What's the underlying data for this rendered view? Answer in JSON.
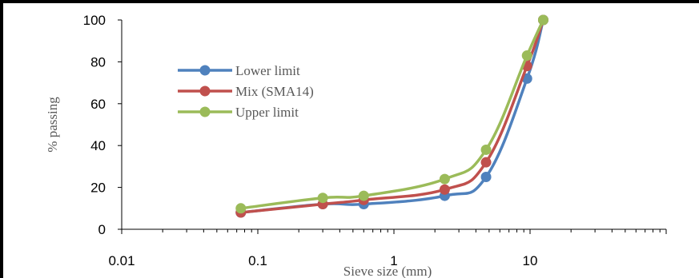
{
  "chart_data": {
    "type": "line",
    "title": "",
    "xlabel": "Sieve size (mm)",
    "ylabel": "% passing",
    "x_scale": "log",
    "xlim": [
      0.01,
      100
    ],
    "ylim": [
      0,
      100
    ],
    "x_ticks": [
      "0.01",
      "0.1",
      "1",
      "10"
    ],
    "y_ticks": [
      "0",
      "20",
      "40",
      "60",
      "80",
      "100"
    ],
    "grid": false,
    "legend_position": "top-left",
    "series": [
      {
        "name": "Lower limit",
        "color": "#4f81bd",
        "points": [
          {
            "x": 0.075,
            "y": 8
          },
          {
            "x": 0.3,
            "y": 12
          },
          {
            "x": 0.6,
            "y": 12
          },
          {
            "x": 2.36,
            "y": 16
          },
          {
            "x": 4.75,
            "y": 25
          },
          {
            "x": 9.5,
            "y": 72
          },
          {
            "x": 12.5,
            "y": 100
          }
        ]
      },
      {
        "name": "Mix (SMA14)",
        "color": "#c0504d",
        "points": [
          {
            "x": 0.075,
            "y": 8
          },
          {
            "x": 0.3,
            "y": 12
          },
          {
            "x": 0.6,
            "y": 14
          },
          {
            "x": 2.36,
            "y": 19
          },
          {
            "x": 4.75,
            "y": 32
          },
          {
            "x": 9.5,
            "y": 78
          },
          {
            "x": 12.5,
            "y": 100
          }
        ]
      },
      {
        "name": "Upper limit",
        "color": "#9bbb59",
        "points": [
          {
            "x": 0.075,
            "y": 10
          },
          {
            "x": 0.3,
            "y": 15
          },
          {
            "x": 0.6,
            "y": 16
          },
          {
            "x": 2.36,
            "y": 24
          },
          {
            "x": 4.75,
            "y": 38
          },
          {
            "x": 9.5,
            "y": 83
          },
          {
            "x": 12.5,
            "y": 100
          }
        ]
      }
    ]
  }
}
